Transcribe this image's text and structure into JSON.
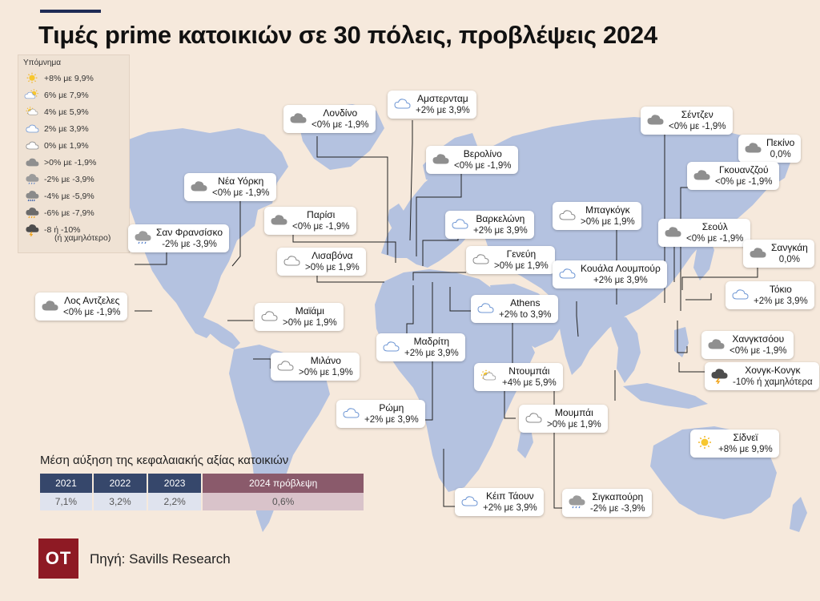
{
  "title": "Τιμές prime κατοικιών σε 30 πόλεις, προβλέψεις 2024",
  "legend": {
    "heading": "Υπόμνημα",
    "items": [
      {
        "icon": "sun-icon",
        "label": "+8% με 9,9%"
      },
      {
        "icon": "sun-cloud-icon",
        "label": "6% με 7,9%"
      },
      {
        "icon": "sun-behind-cloud-icon",
        "label": "4% με 5,9%"
      },
      {
        "icon": "light-blue-cloud-icon",
        "label": "2% με 3,9%"
      },
      {
        "icon": "white-cloud-icon",
        "label": "0% με 1,9%"
      },
      {
        "icon": "grey-cloud-icon",
        "label": ">0% με -1,9%"
      },
      {
        "icon": "light-rain-icon",
        "label": "-2% με -3,9%"
      },
      {
        "icon": "rain-icon",
        "label": "-4% με -5,9%"
      },
      {
        "icon": "heavy-rain-icon",
        "label": "-6% με -7,9%"
      },
      {
        "icon": "storm-icon",
        "label": "-8 ή -10%"
      }
    ],
    "last_note": "(ή χαμηλότερο)"
  },
  "cities": [
    {
      "name": "Αμστερνταμ",
      "value": "+2% με 3,9%",
      "icon": "light-blue-cloud-icon"
    },
    {
      "name": "Λονδίνο",
      "value": "<0% με -1,9%",
      "icon": "grey-cloud-icon"
    },
    {
      "name": "Σέντζεν",
      "value": "<0% με -1,9%",
      "icon": "grey-cloud-icon"
    },
    {
      "name": "Πεκίνο",
      "value": "0,0%",
      "icon": "grey-cloud-icon"
    },
    {
      "name": "Βερολίνο",
      "value": "<0% με -1,9%",
      "icon": "grey-cloud-icon"
    },
    {
      "name": "Γκουανζζού",
      "value": "<0% με -1,9%",
      "icon": "grey-cloud-icon"
    },
    {
      "name": "Νέα Υόρκη",
      "value": "<0% με -1,9%",
      "icon": "grey-cloud-icon"
    },
    {
      "name": "Μπαγκόγκ",
      "value": ">0% με 1,9%",
      "icon": "white-cloud-icon"
    },
    {
      "name": "Παρίσι",
      "value": "<0% με -1,9%",
      "icon": "grey-cloud-icon"
    },
    {
      "name": "Βαρκελώνη",
      "value": "+2% με 3,9%",
      "icon": "light-blue-cloud-icon"
    },
    {
      "name": "Σεούλ",
      "value": "<0% με -1,9%",
      "icon": "grey-cloud-icon"
    },
    {
      "name": "Σαν Φρανσίσκο",
      "value": "-2% με -3,9%",
      "icon": "light-rain-icon"
    },
    {
      "name": "Σανγκάη",
      "value": "0,0%",
      "icon": "grey-cloud-icon"
    },
    {
      "name": "Λισαβόνα",
      "value": ">0% με 1,9%",
      "icon": "white-cloud-icon"
    },
    {
      "name": "Γενεύη",
      "value": ">0% με 1,9%",
      "icon": "white-cloud-icon"
    },
    {
      "name": "Κουάλα Λουμπούρ",
      "value": "+2% με 3,9%",
      "icon": "light-blue-cloud-icon"
    },
    {
      "name": "Λος Αντζελες",
      "value": "<0% με -1,9%",
      "icon": "grey-cloud-icon"
    },
    {
      "name": "Τόκιο",
      "value": "+2% με 3,9%",
      "icon": "light-blue-cloud-icon"
    },
    {
      "name": "Athens",
      "value": "+2% to 3,9%",
      "icon": "light-blue-cloud-icon"
    },
    {
      "name": "Μαϊάμι",
      "value": ">0% με 1,9%",
      "icon": "white-cloud-icon"
    },
    {
      "name": "Μαδρίτη",
      "value": "+2% με 3,9%",
      "icon": "light-blue-cloud-icon"
    },
    {
      "name": "Χανγκτσόου",
      "value": "<0% με -1,9%",
      "icon": "grey-cloud-icon"
    },
    {
      "name": "Μιλάνο",
      "value": ">0% με 1,9%",
      "icon": "white-cloud-icon"
    },
    {
      "name": "Ντουμπάι",
      "value": "+4% με 5,9%",
      "icon": "sun-behind-cloud-icon"
    },
    {
      "name": "Χονγκ-Κονγκ",
      "value": "-10% ή χαμηλότερα",
      "icon": "storm-icon"
    },
    {
      "name": "Ρώμη",
      "value": "+2% με 3,9%",
      "icon": "light-blue-cloud-icon"
    },
    {
      "name": "Μουμπάι",
      "value": ">0% με 1,9%",
      "icon": "white-cloud-icon"
    },
    {
      "name": "Σίδνεϊ",
      "value": "+8% με 9,9%",
      "icon": "sun-icon"
    },
    {
      "name": "Κέιπ Τάουν",
      "value": "+2% με 3,9%",
      "icon": "light-blue-cloud-icon"
    },
    {
      "name": "Σιγκαπούρη",
      "value": "-2% με -3,9%",
      "icon": "light-rain-icon"
    }
  ],
  "avg_title": "Μέση αύξηση της κεφαλαιακής αξίας  κατοικιών",
  "avg_table": {
    "headers": [
      "2021",
      "2022",
      "2023",
      "2024 πρόβλεψη"
    ],
    "values": [
      "7,1%",
      "3,2%",
      "2,2%",
      "0,6%"
    ]
  },
  "logo": "OT",
  "source": "Πηγή: Savills Research",
  "colors": {
    "background": "#f6e9dc",
    "land": "#b4c2e0",
    "header_blue": "#36476b",
    "header_forecast": "#8a5a6b",
    "logo_red": "#8e1a24"
  }
}
